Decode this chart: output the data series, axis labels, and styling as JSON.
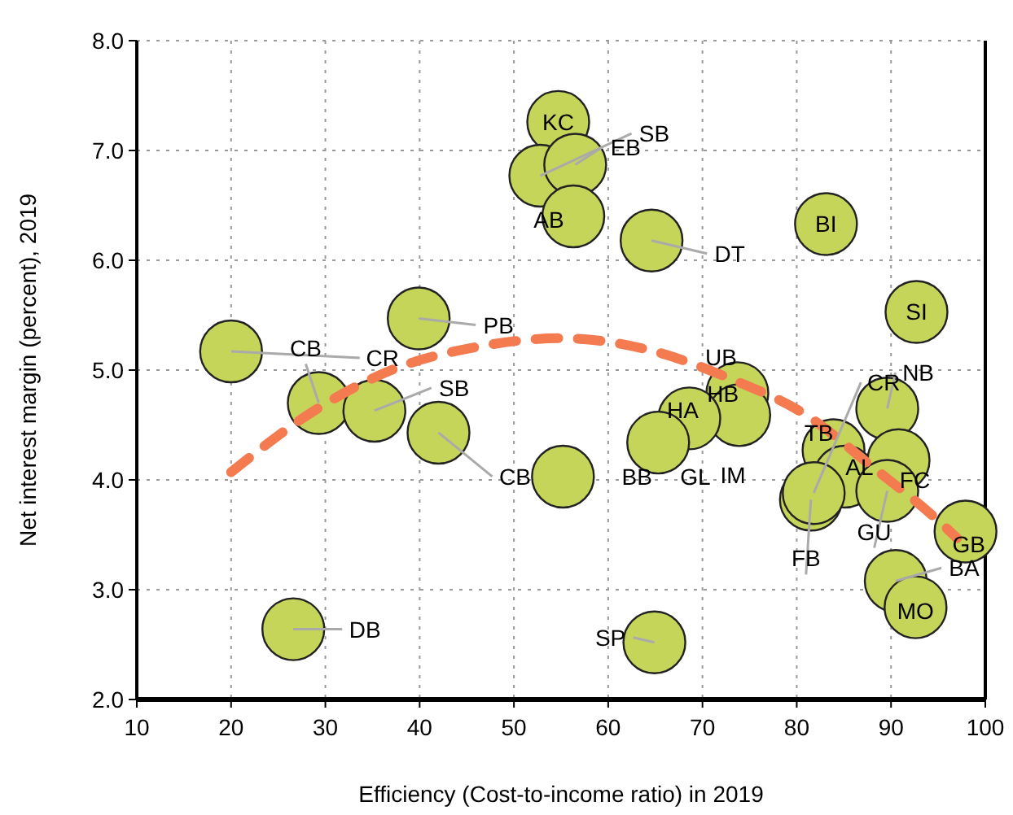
{
  "chart_data": {
    "type": "scatter",
    "xlabel": "Efficiency (Cost-to-income ratio) in 2019",
    "ylabel": "Net interest margin (percent), 2019",
    "xlim": [
      10,
      100
    ],
    "ylim": [
      2,
      8
    ],
    "xticks": [
      10,
      20,
      30,
      40,
      50,
      60,
      70,
      80,
      90,
      100
    ],
    "yticks": [
      {
        "value": 2,
        "label": "2.0"
      },
      {
        "value": 3,
        "label": "3.0"
      },
      {
        "value": 4,
        "label": "4.0"
      },
      {
        "value": 5,
        "label": "5.0"
      },
      {
        "value": 6,
        "label": "6.0"
      },
      {
        "value": 7,
        "label": "7.0"
      },
      {
        "value": 8,
        "label": "8.0"
      }
    ],
    "grid": true,
    "series": [
      {
        "color": "#c5d55a",
        "marker": "circle",
        "value_labels": [
          "CR",
          "CB",
          "SB",
          "PB",
          "CB",
          null,
          "DB",
          "KC",
          "SB",
          "EB",
          "AB",
          "DT",
          "BI",
          "SI",
          "NB",
          "UB",
          "HB",
          "HA",
          "BB",
          "SP",
          "TB",
          "AL",
          "FB",
          "CR",
          "FC",
          "GU",
          "GB",
          "BA",
          "MO"
        ],
        "x": [
          20.0,
          29.3,
          35.2,
          39.9,
          42.0,
          55.2,
          26.6,
          54.7,
          52.8,
          56.5,
          56.3,
          64.6,
          83.1,
          92.7,
          89.6,
          73.7,
          73.9,
          68.6,
          65.3,
          64.9,
          83.9,
          85.1,
          81.5,
          81.8,
          90.8,
          89.6,
          97.9,
          90.5,
          92.6
        ],
        "values": [
          5.17,
          4.7,
          4.63,
          5.47,
          4.43,
          4.03,
          2.64,
          7.26,
          6.77,
          6.87,
          6.4,
          6.18,
          6.33,
          5.53,
          4.65,
          4.79,
          4.59,
          4.56,
          4.34,
          2.52,
          4.27,
          4.03,
          3.82,
          3.88,
          4.18,
          3.9,
          3.53,
          3.08,
          2.84
        ]
      },
      {
        "type": "line",
        "color": "#f47a50",
        "line_style": "dashed",
        "x": [
          20,
          29,
          37,
          46,
          55,
          64,
          73,
          81,
          88,
          95,
          97
        ],
        "values": [
          4.07,
          4.64,
          5.0,
          5.21,
          5.29,
          5.19,
          4.92,
          4.59,
          4.12,
          3.63,
          3.47
        ]
      }
    ],
    "annotations": [
      "GL",
      "IM"
    ]
  }
}
